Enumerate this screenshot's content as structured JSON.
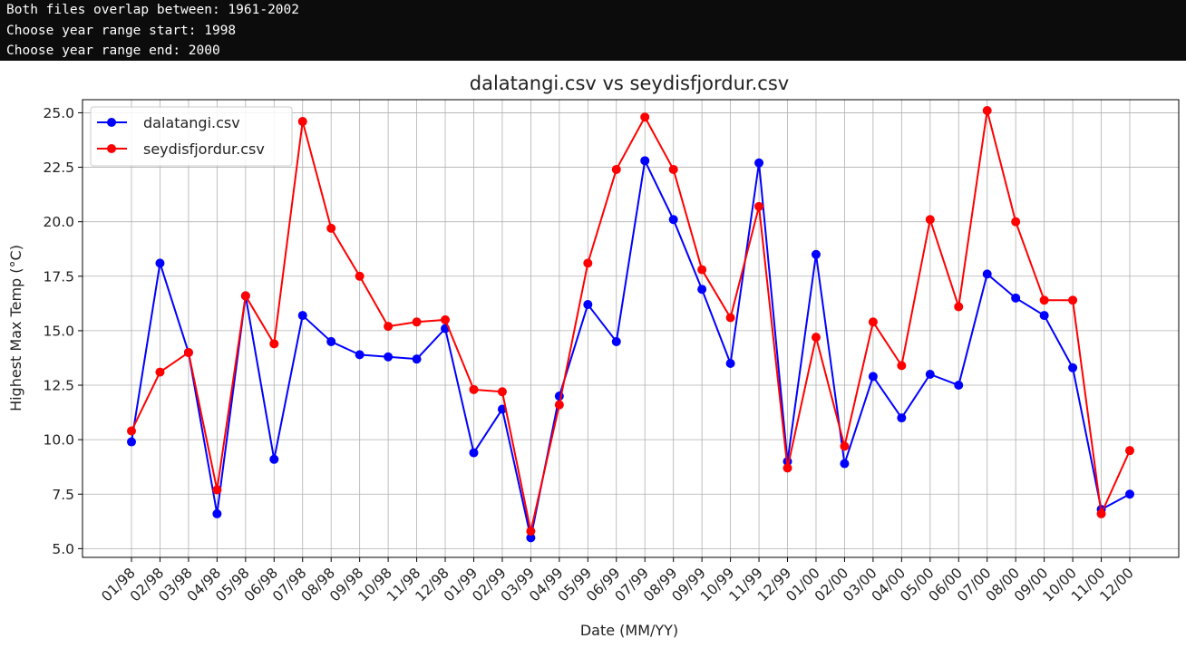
{
  "console": {
    "lines": [
      "Both files overlap between: 1961-2002",
      "Choose year range start: 1998",
      "Choose year range end: 2000"
    ]
  },
  "chart_data": {
    "type": "line",
    "title": "dalatangi.csv vs seydisfjordur.csv",
    "xlabel": "Date (MM/YY)",
    "ylabel": "Highest Max Temp (°C)",
    "ylim": [
      4.6,
      25.6
    ],
    "yticks": [
      "5.0",
      "7.5",
      "10.0",
      "12.5",
      "15.0",
      "17.5",
      "20.0",
      "22.5",
      "25.0"
    ],
    "ytick_values": [
      5.0,
      7.5,
      10.0,
      12.5,
      15.0,
      17.5,
      20.0,
      22.5,
      25.0
    ],
    "grid": true,
    "legend": "top-left",
    "categories": [
      "01/98",
      "02/98",
      "03/98",
      "04/98",
      "05/98",
      "06/98",
      "07/98",
      "08/98",
      "09/98",
      "10/98",
      "11/98",
      "12/98",
      "01/99",
      "02/99",
      "03/99",
      "04/99",
      "05/99",
      "06/99",
      "07/99",
      "08/99",
      "09/99",
      "10/99",
      "11/99",
      "12/99",
      "01/00",
      "02/00",
      "03/00",
      "04/00",
      "05/00",
      "06/00",
      "07/00",
      "08/00",
      "09/00",
      "10/00",
      "11/00",
      "12/00"
    ],
    "series": [
      {
        "name": "dalatangi.csv",
        "color": "#0000ff",
        "values": [
          9.9,
          18.1,
          14.0,
          6.6,
          16.6,
          9.1,
          15.7,
          14.5,
          13.9,
          13.8,
          13.7,
          15.1,
          9.4,
          11.4,
          5.5,
          12.0,
          16.2,
          14.5,
          22.8,
          20.1,
          16.9,
          13.5,
          22.7,
          9.0,
          18.5,
          8.9,
          12.9,
          11.0,
          13.0,
          12.5,
          17.6,
          16.5,
          15.7,
          13.3,
          6.8,
          7.5
        ]
      },
      {
        "name": "seydisfjordur.csv",
        "color": "#ff0000",
        "values": [
          10.4,
          13.1,
          14.0,
          7.7,
          16.6,
          14.4,
          24.6,
          19.7,
          17.5,
          15.2,
          15.4,
          15.5,
          12.3,
          12.2,
          5.8,
          11.6,
          18.1,
          22.4,
          24.8,
          22.4,
          17.8,
          15.6,
          20.7,
          8.7,
          14.7,
          9.7,
          15.4,
          13.4,
          20.1,
          16.1,
          25.1,
          20.0,
          16.4,
          16.4,
          6.6,
          9.5
        ]
      }
    ]
  }
}
